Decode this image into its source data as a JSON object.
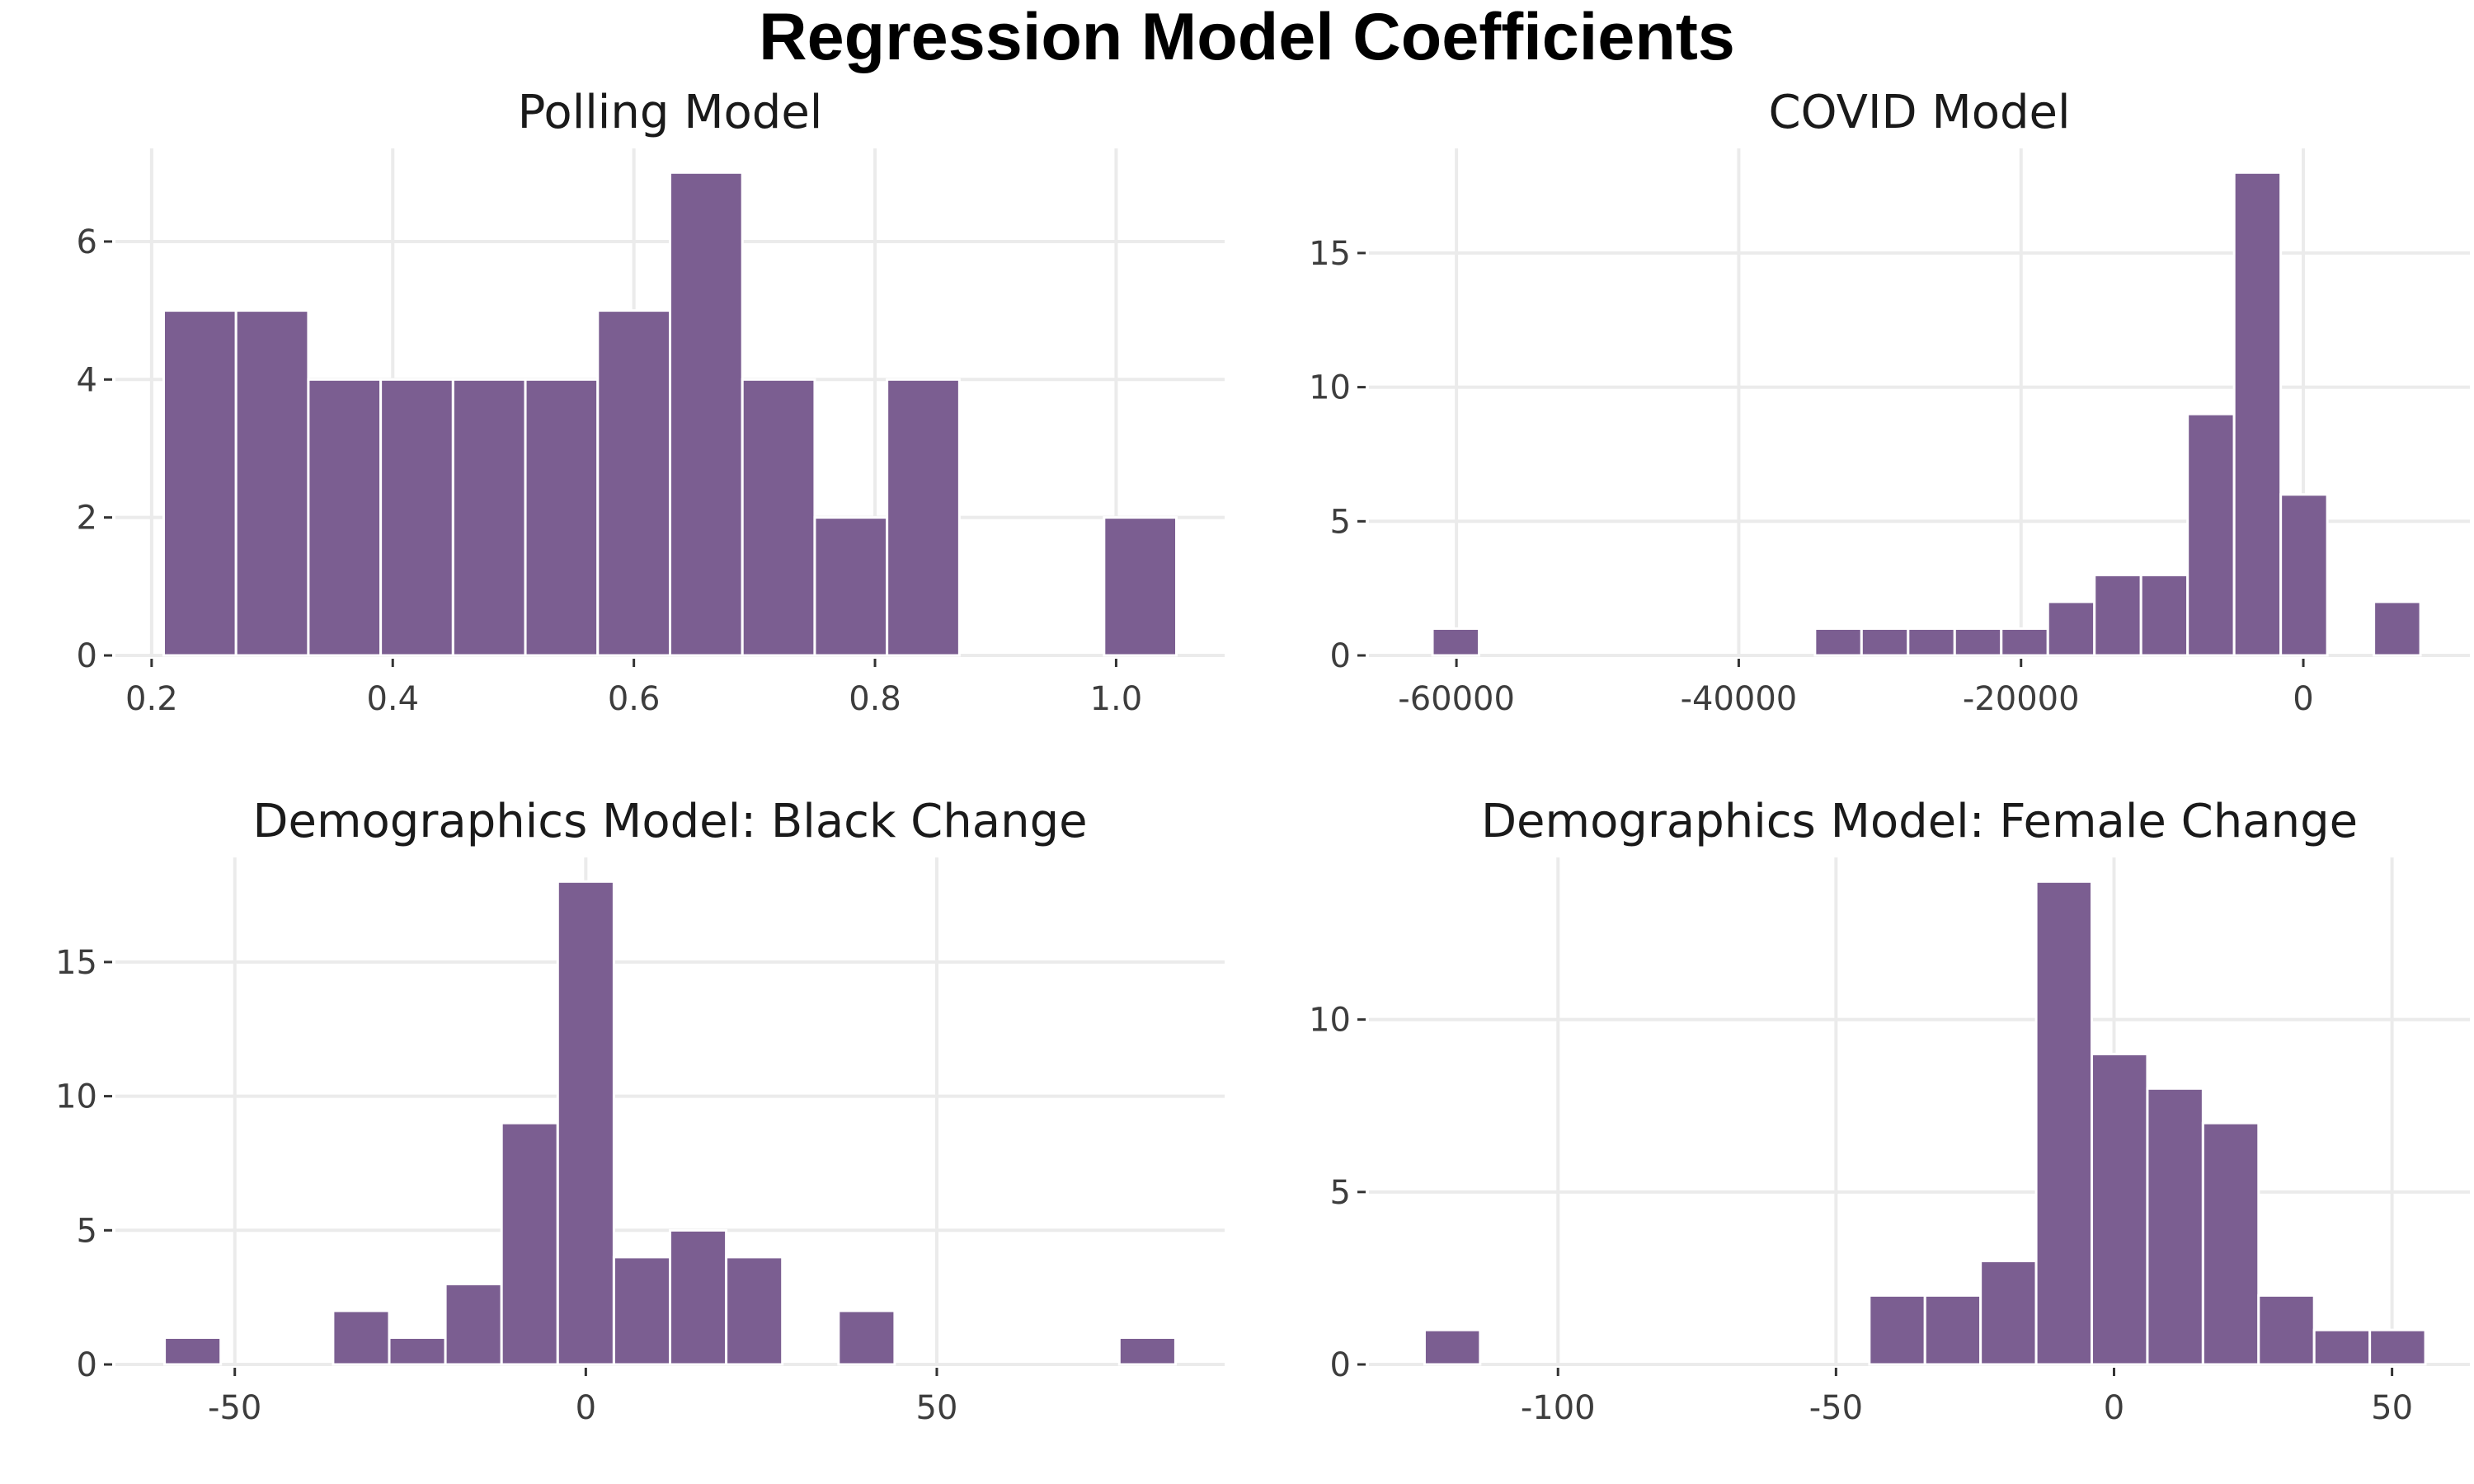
{
  "title": "Regression Model Coefficients",
  "colors": {
    "bar_fill": "#7b5e91",
    "grid": "#ebebeb",
    "background": "#ffffff"
  },
  "chart_data": [
    {
      "type": "bar",
      "title": "Polling Model",
      "xlabel": "",
      "ylabel": "",
      "grid": true,
      "xlim": [
        0.17,
        1.09
      ],
      "ylim": [
        0,
        7.35
      ],
      "x_ticks": [
        {
          "value": 0.2,
          "label": "0.2"
        },
        {
          "value": 0.4,
          "label": "0.4"
        },
        {
          "value": 0.6,
          "label": "0.6"
        },
        {
          "value": 0.8,
          "label": "0.8"
        },
        {
          "value": 1.0,
          "label": "1.0"
        }
      ],
      "y_ticks": [
        {
          "value": 0,
          "label": "0"
        },
        {
          "value": 2,
          "label": "2"
        },
        {
          "value": 4,
          "label": "4"
        },
        {
          "value": 6,
          "label": "6"
        }
      ],
      "bins": [
        {
          "x0": 0.21,
          "x1": 0.27,
          "count": 5
        },
        {
          "x0": 0.27,
          "x1": 0.33,
          "count": 5
        },
        {
          "x0": 0.33,
          "x1": 0.39,
          "count": 4
        },
        {
          "x0": 0.39,
          "x1": 0.45,
          "count": 4
        },
        {
          "x0": 0.45,
          "x1": 0.51,
          "count": 4
        },
        {
          "x0": 0.51,
          "x1": 0.57,
          "count": 4
        },
        {
          "x0": 0.57,
          "x1": 0.63,
          "count": 5
        },
        {
          "x0": 0.63,
          "x1": 0.69,
          "count": 7
        },
        {
          "x0": 0.69,
          "x1": 0.75,
          "count": 4
        },
        {
          "x0": 0.75,
          "x1": 0.81,
          "count": 2
        },
        {
          "x0": 0.81,
          "x1": 0.87,
          "count": 4
        },
        {
          "x0": 0.99,
          "x1": 1.05,
          "count": 2
        }
      ]
    },
    {
      "type": "bar",
      "title": "COVID Model",
      "xlabel": "",
      "ylabel": "",
      "grid": true,
      "xlim": [
        -66200,
        11800
      ],
      "ylim": [
        0,
        18.9
      ],
      "x_ticks": [
        {
          "value": -60000,
          "label": "-60000"
        },
        {
          "value": -40000,
          "label": "-40000"
        },
        {
          "value": -20000,
          "label": "-20000"
        },
        {
          "value": 0,
          "label": "0"
        }
      ],
      "y_ticks": [
        {
          "value": 0,
          "label": "0"
        },
        {
          "value": 5,
          "label": "5"
        },
        {
          "value": 10,
          "label": "10"
        },
        {
          "value": 15,
          "label": "15"
        }
      ],
      "bins": [
        {
          "x0": -61700,
          "x1": -58400,
          "count": 1
        },
        {
          "x0": -34600,
          "x1": -31300,
          "count": 1
        },
        {
          "x0": -31300,
          "x1": -28000,
          "count": 1
        },
        {
          "x0": -28000,
          "x1": -24700,
          "count": 1
        },
        {
          "x0": -24700,
          "x1": -21400,
          "count": 1
        },
        {
          "x0": -21400,
          "x1": -18100,
          "count": 1
        },
        {
          "x0": -18100,
          "x1": -14800,
          "count": 2
        },
        {
          "x0": -14800,
          "x1": -11500,
          "count": 3
        },
        {
          "x0": -11500,
          "x1": -8200,
          "count": 3
        },
        {
          "x0": -8200,
          "x1": -4900,
          "count": 9
        },
        {
          "x0": -4900,
          "x1": -1600,
          "count": 18
        },
        {
          "x0": -1600,
          "x1": 1700,
          "count": 6
        },
        {
          "x0": 5000,
          "x1": 8300,
          "count": 2
        }
      ]
    },
    {
      "type": "bar",
      "title": "Demographics Model: Black Change",
      "xlabel": "",
      "ylabel": "",
      "grid": true,
      "xlim": [
        -67,
        91
      ],
      "ylim": [
        0,
        18.9
      ],
      "x_ticks": [
        {
          "value": -50,
          "label": "-50"
        },
        {
          "value": 0,
          "label": "0"
        },
        {
          "value": 50,
          "label": "50"
        }
      ],
      "y_ticks": [
        {
          "value": 0,
          "label": "0"
        },
        {
          "value": 5,
          "label": "5"
        },
        {
          "value": 10,
          "label": "10"
        },
        {
          "value": 15,
          "label": "15"
        }
      ],
      "bins": [
        {
          "x0": -60,
          "x1": -52,
          "count": 1
        },
        {
          "x0": -36,
          "x1": -28,
          "count": 2
        },
        {
          "x0": -28,
          "x1": -20,
          "count": 1
        },
        {
          "x0": -20,
          "x1": -12,
          "count": 3
        },
        {
          "x0": -12,
          "x1": -4,
          "count": 9
        },
        {
          "x0": -4,
          "x1": 4,
          "count": 18
        },
        {
          "x0": 4,
          "x1": 12,
          "count": 4
        },
        {
          "x0": 12,
          "x1": 20,
          "count": 5
        },
        {
          "x0": 20,
          "x1": 28,
          "count": 4
        },
        {
          "x0": 36,
          "x1": 44,
          "count": 2
        },
        {
          "x0": 76,
          "x1": 84,
          "count": 1
        }
      ]
    },
    {
      "type": "bar",
      "title": "Demographics Model: Female Change",
      "xlabel": "",
      "ylabel": "",
      "grid": true,
      "xlim": [
        -134,
        64
      ],
      "ylim": [
        0,
        14.7
      ],
      "x_ticks": [
        {
          "value": -100,
          "label": "-100"
        },
        {
          "value": -50,
          "label": "-50"
        },
        {
          "value": 0,
          "label": "0"
        },
        {
          "value": 50,
          "label": "50"
        }
      ],
      "y_ticks": [
        {
          "value": 0,
          "label": "0"
        },
        {
          "value": 5,
          "label": "5"
        },
        {
          "value": 10,
          "label": "10"
        }
      ],
      "bins": [
        {
          "x0": -124,
          "x1": -114,
          "count": 1
        },
        {
          "x0": -44,
          "x1": -34,
          "count": 2
        },
        {
          "x0": -34,
          "x1": -24,
          "count": 2
        },
        {
          "x0": -24,
          "x1": -14,
          "count": 3
        },
        {
          "x0": -14,
          "x1": -4,
          "count": 14
        },
        {
          "x0": -4,
          "x1": 6,
          "count": 9
        },
        {
          "x0": 6,
          "x1": 16,
          "count": 8
        },
        {
          "x0": 16,
          "x1": 26,
          "count": 7
        },
        {
          "x0": 26,
          "x1": 36,
          "count": 2
        },
        {
          "x0": 36,
          "x1": 46,
          "count": 1
        },
        {
          "x0": 46,
          "x1": 56,
          "count": 1
        }
      ]
    }
  ]
}
